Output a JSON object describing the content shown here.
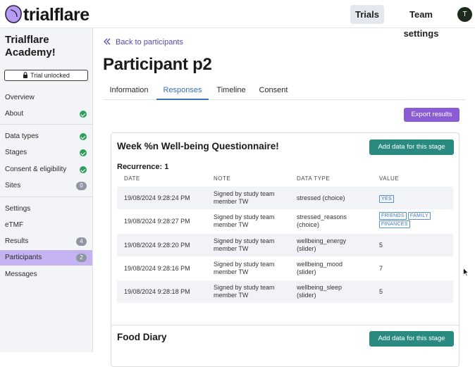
{
  "brand": {
    "name": "trialflare"
  },
  "nav": {
    "trials": "Trials",
    "team_settings": "Team settings",
    "avatar_initial": "T"
  },
  "sidebar": {
    "title": "Trialflare Academy!",
    "badge": "Trial unlocked",
    "items": [
      {
        "label": "Overview"
      },
      {
        "label": "About",
        "status": "check"
      },
      {
        "label": "Data types",
        "status": "check"
      },
      {
        "label": "Stages",
        "status": "check"
      },
      {
        "label": "Consent & eligibility",
        "status": "check"
      },
      {
        "label": "Sites",
        "count": "0"
      },
      {
        "label": "Settings"
      },
      {
        "label": "eTMF"
      },
      {
        "label": "Results",
        "count": "4"
      },
      {
        "label": "Participants",
        "count": "2",
        "active": true
      },
      {
        "label": "Messages"
      }
    ]
  },
  "main": {
    "back_label": "Back to participants",
    "title": "Participant p2",
    "tabs": [
      "Information",
      "Responses",
      "Timeline",
      "Consent"
    ],
    "active_tab": "Responses",
    "export_label": "Export results"
  },
  "stage1": {
    "title": "Week %n Well-being Questionnaire!",
    "add_label": "Add data for this stage",
    "recurrence": "Recurrence: 1",
    "columns": [
      "DATE",
      "NOTE",
      "DATA TYPE",
      "VALUE"
    ],
    "rows": [
      {
        "date": "19/08/2024 9:28:24 PM",
        "note": [
          "Signed by study team",
          "member TW"
        ],
        "type": [
          "stressed (choice)"
        ],
        "value_pills": [
          "YES"
        ]
      },
      {
        "date": "19/08/2024 9:28:27 PM",
        "note": [
          "Signed by study team",
          "member TW"
        ],
        "type": [
          "stressed_reasons",
          "(choice)"
        ],
        "value_pills": [
          "FRIENDS",
          "FAMILY",
          "FINANCES"
        ]
      },
      {
        "date": "19/08/2024 9:28:20 PM",
        "note": [
          "Signed by study team",
          "member TW"
        ],
        "type": [
          "wellbeing_energy",
          "(slider)"
        ],
        "value": "5"
      },
      {
        "date": "19/08/2024 9:28:16 PM",
        "note": [
          "Signed by study team",
          "member TW"
        ],
        "type": [
          "wellbeing_mood",
          "(slider)"
        ],
        "value": "7"
      },
      {
        "date": "19/08/2024 9:28:18 PM",
        "note": [
          "Signed by study team",
          "member TW"
        ],
        "type": [
          "wellbeing_sleep",
          "(slider)"
        ],
        "value": "5"
      }
    ]
  },
  "stage2": {
    "title": "Food Diary",
    "add_label": "Add data for this stage"
  },
  "colors": {
    "accent_purple": "#8a5cd6",
    "teal": "#2b8a80",
    "link": "#4f4ab0",
    "tab_active": "#3a6fb8",
    "check_green": "#2e9e5a"
  }
}
